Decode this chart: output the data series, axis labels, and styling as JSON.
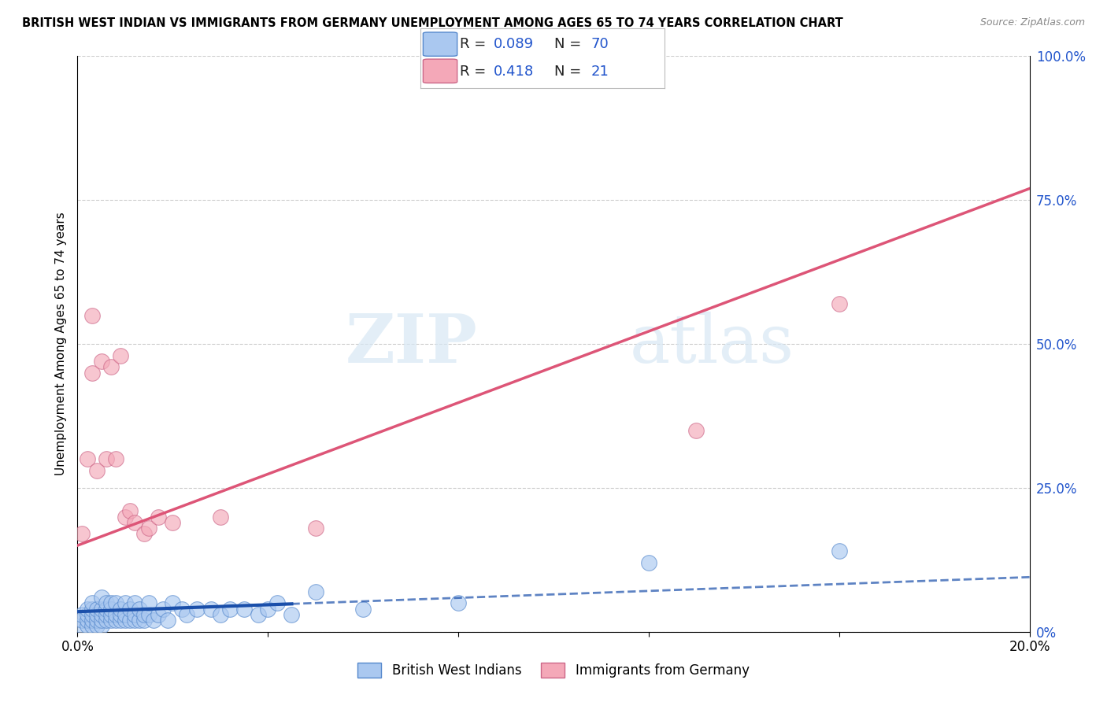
{
  "title": "BRITISH WEST INDIAN VS IMMIGRANTS FROM GERMANY UNEMPLOYMENT AMONG AGES 65 TO 74 YEARS CORRELATION CHART",
  "source": "Source: ZipAtlas.com",
  "ylabel": "Unemployment Among Ages 65 to 74 years",
  "xlim": [
    0.0,
    0.2
  ],
  "ylim": [
    0.0,
    1.0
  ],
  "xticks": [
    0.0,
    0.04,
    0.08,
    0.12,
    0.16,
    0.2
  ],
  "xtick_labels": [
    "0.0%",
    "",
    "",
    "",
    "",
    "20.0%"
  ],
  "ytick_labels_right": [
    "0%",
    "25.0%",
    "50.0%",
    "75.0%",
    "100.0%"
  ],
  "yticks_right": [
    0.0,
    0.25,
    0.5,
    0.75,
    1.0
  ],
  "blue_R": 0.089,
  "blue_N": 70,
  "pink_R": 0.418,
  "pink_N": 21,
  "blue_color": "#aac8f0",
  "pink_color": "#f4a8b8",
  "blue_edge_color": "#5588cc",
  "pink_edge_color": "#cc6688",
  "blue_line_color": "#1a4faa",
  "pink_line_color": "#dd5577",
  "legend_R_color": "#222222",
  "legend_N_color": "#2255cc",
  "background_color": "#ffffff",
  "watermark_zip": "ZIP",
  "watermark_atlas": "atlas",
  "blue_line_intercept": 0.035,
  "blue_line_slope": 0.3,
  "blue_dashed_intercept": 0.035,
  "blue_dashed_slope": 0.3,
  "pink_line_intercept": 0.15,
  "pink_line_slope": 3.1,
  "blue_scatter_x": [
    0.001,
    0.001,
    0.001,
    0.002,
    0.002,
    0.002,
    0.002,
    0.003,
    0.003,
    0.003,
    0.003,
    0.003,
    0.004,
    0.004,
    0.004,
    0.004,
    0.005,
    0.005,
    0.005,
    0.005,
    0.005,
    0.006,
    0.006,
    0.006,
    0.006,
    0.007,
    0.007,
    0.007,
    0.007,
    0.008,
    0.008,
    0.008,
    0.009,
    0.009,
    0.009,
    0.01,
    0.01,
    0.01,
    0.011,
    0.011,
    0.012,
    0.012,
    0.012,
    0.013,
    0.013,
    0.014,
    0.014,
    0.015,
    0.015,
    0.016,
    0.017,
    0.018,
    0.019,
    0.02,
    0.022,
    0.023,
    0.025,
    0.028,
    0.03,
    0.032,
    0.035,
    0.038,
    0.04,
    0.042,
    0.045,
    0.05,
    0.06,
    0.08,
    0.12,
    0.16
  ],
  "blue_scatter_y": [
    0.01,
    0.02,
    0.03,
    0.01,
    0.02,
    0.03,
    0.04,
    0.01,
    0.02,
    0.03,
    0.04,
    0.05,
    0.01,
    0.02,
    0.03,
    0.04,
    0.01,
    0.02,
    0.03,
    0.04,
    0.06,
    0.02,
    0.03,
    0.04,
    0.05,
    0.02,
    0.03,
    0.04,
    0.05,
    0.02,
    0.03,
    0.05,
    0.02,
    0.03,
    0.04,
    0.02,
    0.03,
    0.05,
    0.02,
    0.04,
    0.02,
    0.03,
    0.05,
    0.02,
    0.04,
    0.02,
    0.03,
    0.03,
    0.05,
    0.02,
    0.03,
    0.04,
    0.02,
    0.05,
    0.04,
    0.03,
    0.04,
    0.04,
    0.03,
    0.04,
    0.04,
    0.03,
    0.04,
    0.05,
    0.03,
    0.07,
    0.04,
    0.05,
    0.12,
    0.14
  ],
  "pink_scatter_x": [
    0.001,
    0.002,
    0.003,
    0.003,
    0.004,
    0.005,
    0.006,
    0.007,
    0.008,
    0.009,
    0.01,
    0.011,
    0.012,
    0.014,
    0.015,
    0.017,
    0.02,
    0.03,
    0.05,
    0.13,
    0.16
  ],
  "pink_scatter_y": [
    0.17,
    0.3,
    0.45,
    0.55,
    0.28,
    0.47,
    0.3,
    0.46,
    0.3,
    0.48,
    0.2,
    0.21,
    0.19,
    0.17,
    0.18,
    0.2,
    0.19,
    0.2,
    0.18,
    0.35,
    0.57
  ]
}
